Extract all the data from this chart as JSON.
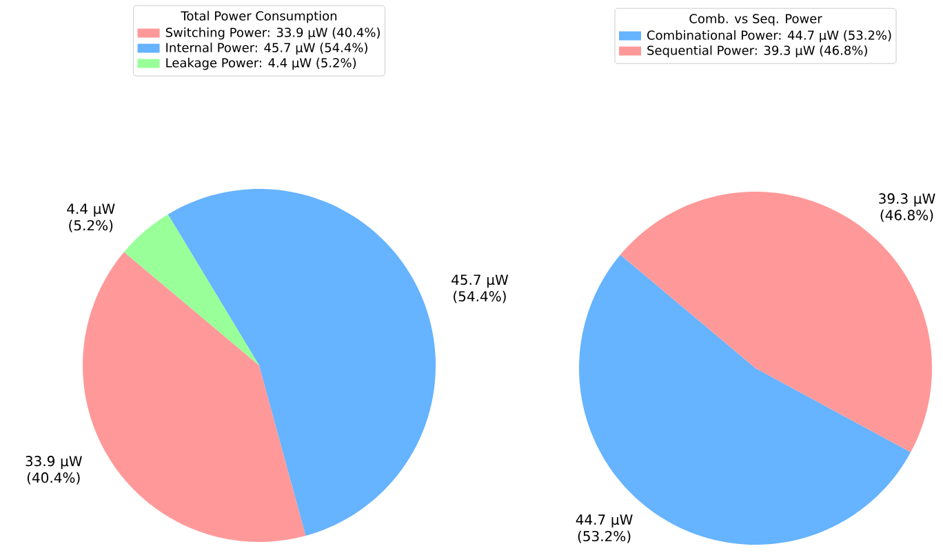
{
  "chart_data": [
    {
      "type": "pie",
      "legend_title": "Total Power Consumption",
      "legend": "top",
      "categories": [
        "Switching Power: 33.9 μW (40.4%)",
        "Internal Power: 45.7 μW (54.4%)",
        "Leakage Power: 4.4 μW (5.2%)"
      ],
      "values": [
        33.9,
        45.7,
        4.4
      ],
      "colors": [
        "#ff9999",
        "#66b3ff",
        "#99ff99"
      ],
      "value_labels": [
        "33.9 μW (40.4%)",
        "45.7 μW (54.4%)",
        "4.4 μW (5.2%)"
      ]
    },
    {
      "type": "pie",
      "legend_title": "Comb. vs Seq. Power",
      "legend": "top",
      "categories": [
        "Combinational Power: 44.7 μW (53.2%)",
        "Sequential Power: 39.3 μW (46.8%)"
      ],
      "values": [
        44.7,
        39.3
      ],
      "colors": [
        "#66b3ff",
        "#ff9999"
      ],
      "value_labels": [
        "44.7 μW (53.2%)",
        "39.3 μW (46.8%)"
      ]
    }
  ]
}
